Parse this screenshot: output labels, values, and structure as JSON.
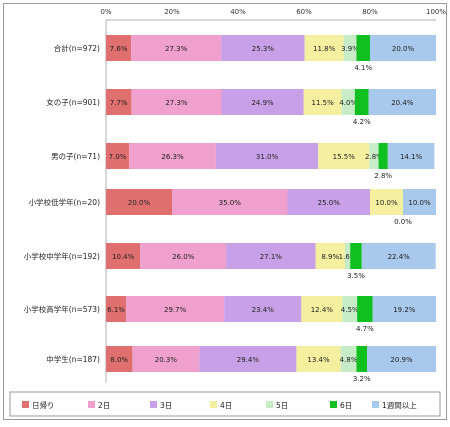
{
  "chart_data": {
    "type": "bar",
    "orientation": "horizontal",
    "stacked": true,
    "percent": true,
    "xlim": [
      0,
      100
    ],
    "x_tick_labels": [
      "0%",
      "20%",
      "40%",
      "60%",
      "80%",
      "100%"
    ],
    "categories": [
      "合計(n=972)",
      "女の子(n=901)",
      "男の子(n=71)",
      "小学校低学年(n=20)",
      "小学校中学年(n=192)",
      "小学校高学年(n=573)",
      "中学生(n=187)"
    ],
    "series": [
      {
        "name": "日帰り",
        "color": "#e07070",
        "values": [
          7.6,
          7.7,
          7.0,
          20.0,
          10.4,
          6.1,
          8.0
        ]
      },
      {
        "name": "2日",
        "color": "#f0a0cc",
        "values": [
          27.3,
          27.3,
          26.3,
          35.0,
          26.0,
          29.7,
          20.3
        ]
      },
      {
        "name": "3日",
        "color": "#c8a0e8",
        "values": [
          25.3,
          24.9,
          31.0,
          25.0,
          27.1,
          23.4,
          29.4
        ]
      },
      {
        "name": "4日",
        "color": "#f4f0a0",
        "values": [
          11.8,
          11.5,
          15.5,
          10.0,
          8.9,
          12.4,
          13.4
        ]
      },
      {
        "name": "5日",
        "color": "#c8ecc8",
        "values": [
          3.9,
          4.0,
          2.8,
          0.0,
          1.6,
          4.5,
          4.8
        ]
      },
      {
        "name": "6日",
        "color": "#10c020",
        "values": [
          4.1,
          4.2,
          2.8,
          0.0,
          3.5,
          4.7,
          3.2
        ]
      },
      {
        "name": "1週間以上",
        "color": "#a8c8ec",
        "values": [
          20.0,
          20.4,
          14.1,
          10.0,
          22.4,
          19.2,
          20.9
        ]
      }
    ],
    "data_labels": [
      [
        "7.6%",
        "27.3%",
        "25.3%",
        "11.8%",
        "3.9%",
        "4.1%",
        "20.0%"
      ],
      [
        "7.7%",
        "27.3%",
        "24.9%",
        "11.5%",
        "4.0%",
        "4.2%",
        "20.4%"
      ],
      [
        "7.0%",
        "26.3%",
        "31.0%",
        "15.5%",
        "2.8%",
        "2.8%",
        "14.1%"
      ],
      [
        "20.0%",
        "35.0%",
        "25.0%",
        "10.0%",
        "0.0%",
        "0.0%",
        "10.0%"
      ],
      [
        "10.4%",
        "26.0%",
        "27.1%",
        "8.9%",
        "1.6%",
        "3.5%",
        "22.4%"
      ],
      [
        "6.1%",
        "29.7%",
        "23.4%",
        "12.4%",
        "4.5%",
        "4.7%",
        "19.2%"
      ],
      [
        "8.0%",
        "20.3%",
        "29.4%",
        "13.4%",
        "4.8%",
        "3.2%",
        "20.9%"
      ]
    ],
    "label_placement": [
      [
        "in",
        "in",
        "in",
        "in",
        "in",
        "below",
        "in"
      ],
      [
        "in",
        "in",
        "in",
        "in",
        "in",
        "below",
        "in"
      ],
      [
        "in",
        "in",
        "in",
        "in",
        "in",
        "below",
        "in"
      ],
      [
        "in",
        "in",
        "in",
        "in",
        "below",
        "none",
        "in"
      ],
      [
        "in",
        "in",
        "in",
        "in",
        "in",
        "below",
        "in"
      ],
      [
        "in",
        "in",
        "in",
        "in",
        "in",
        "below",
        "in"
      ],
      [
        "in",
        "in",
        "in",
        "in",
        "in",
        "below",
        "in"
      ]
    ],
    "legend_position": "bottom",
    "grid": false
  }
}
